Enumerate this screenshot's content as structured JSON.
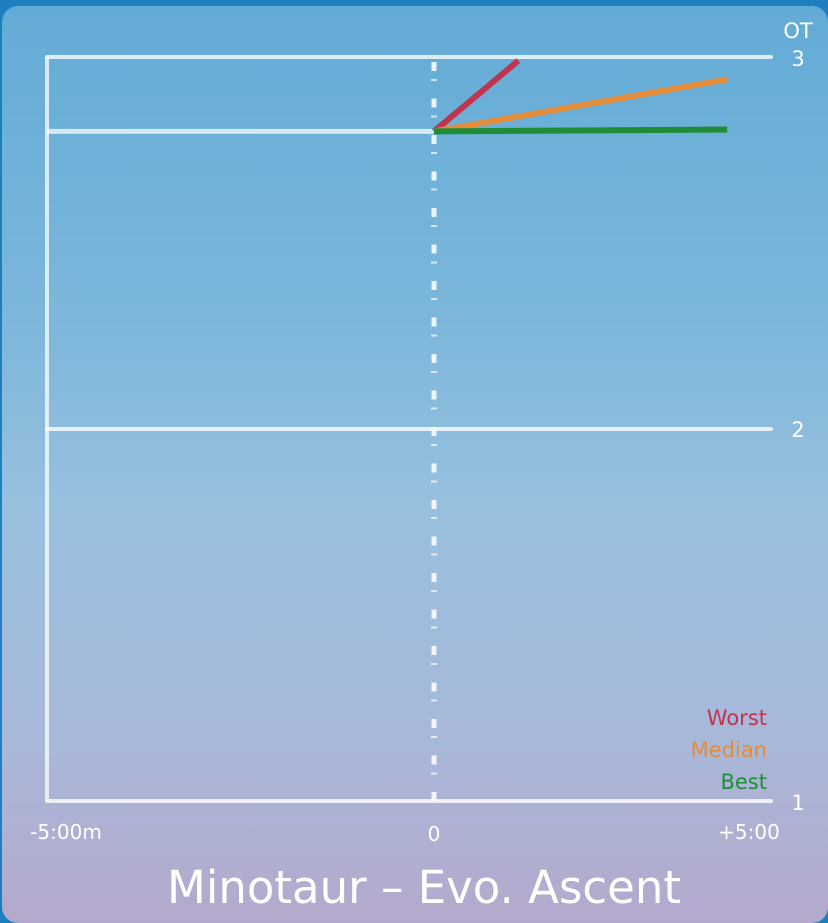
{
  "chart_data": {
    "type": "line",
    "title": "Minotaur – Evo. Ascent",
    "y_axis_label": "OT",
    "x_tick_labels": [
      "-5:00m",
      "0",
      "+5:00"
    ],
    "x_range_minutes": [
      -5,
      5
    ],
    "y_ticks": [
      1,
      2,
      3
    ],
    "y_tick_labels": [
      "1",
      "2",
      "3"
    ],
    "ylim": [
      1,
      3
    ],
    "grid": true,
    "legend_position": "bottom-right",
    "current_value": 2.8,
    "series": [
      {
        "name": "Worst",
        "color": "#c0344e",
        "x": [
          0,
          1.25
        ],
        "y": [
          2.8,
          2.99
        ]
      },
      {
        "name": "Median",
        "color": "#e38c3a",
        "x": [
          0,
          4.35
        ],
        "y": [
          2.8,
          2.94
        ]
      },
      {
        "name": "Best",
        "color": "#1f8c37",
        "x": [
          0,
          4.35
        ],
        "y": [
          2.8,
          2.805
        ]
      }
    ]
  }
}
